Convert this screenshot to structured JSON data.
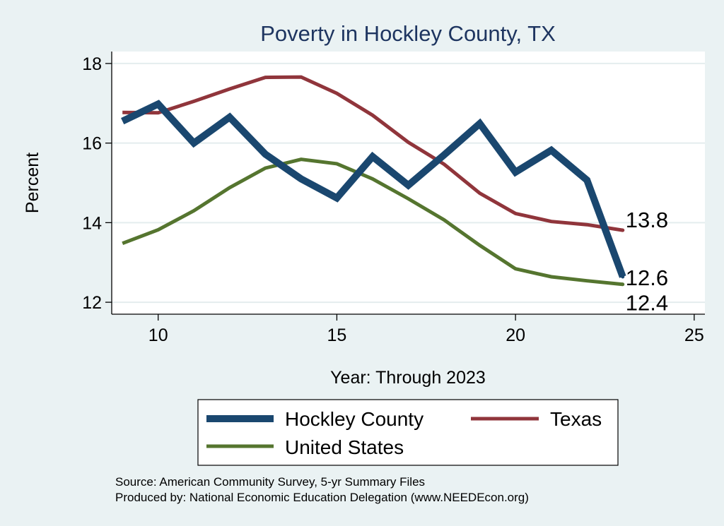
{
  "chart_data": {
    "type": "line",
    "title": "Poverty in Hockley County, TX",
    "xlabel": "Year: Through 2023",
    "ylabel": "Percent",
    "xlim": [
      8.7,
      25.3
    ],
    "ylim": [
      11.7,
      18.3
    ],
    "xticks": [
      10,
      15,
      20,
      25
    ],
    "yticks": [
      12,
      14,
      16,
      18
    ],
    "grid": true,
    "legend_position": "bottom",
    "series": [
      {
        "name": "Hockley County",
        "color": "#1a476f",
        "x": [
          9,
          10,
          11,
          12,
          13,
          14,
          15,
          16,
          17,
          18,
          19,
          20,
          21,
          22,
          23
        ],
        "values": [
          16.55,
          16.98,
          16.0,
          16.65,
          15.72,
          15.1,
          14.62,
          15.66,
          14.94,
          15.7,
          16.49,
          15.27,
          15.82,
          15.07,
          12.64
        ],
        "end_label": "12.6"
      },
      {
        "name": "Texas",
        "color": "#90353b",
        "x": [
          9,
          10,
          11,
          12,
          13,
          14,
          15,
          16,
          17,
          18,
          19,
          20,
          21,
          22,
          23
        ],
        "values": [
          16.77,
          16.76,
          17.05,
          17.36,
          17.65,
          17.66,
          17.25,
          16.7,
          16.02,
          15.47,
          14.74,
          14.23,
          14.03,
          13.95,
          13.81
        ],
        "end_label": "13.8"
      },
      {
        "name": "United States",
        "color": "#55752f",
        "x": [
          9,
          10,
          11,
          12,
          13,
          14,
          15,
          16,
          17,
          18,
          19,
          20,
          21,
          22,
          23
        ],
        "values": [
          13.48,
          13.82,
          14.3,
          14.88,
          15.37,
          15.59,
          15.48,
          15.1,
          14.6,
          14.07,
          13.43,
          12.84,
          12.64,
          12.54,
          12.45
        ],
        "end_label": "12.4"
      }
    ]
  },
  "source_lines": [
    "Source: American Community Survey, 5-yr Summary Files",
    "Produced by: National Economic Education Delegation (www.NEEDEcon.org)"
  ],
  "colors": {
    "background": "#eaf2f3",
    "plot_background": "#ffffff",
    "grid": "#e4edee",
    "title": "#1e3560"
  }
}
